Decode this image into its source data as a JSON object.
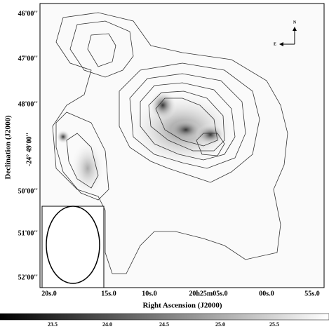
{
  "y_axis": {
    "title": "Declination (J2000)",
    "ticks": [
      "46'00''",
      "47'00''",
      "48'00''",
      "-24° 49'00''",
      "50'00''",
      "51'00''",
      "52'00''"
    ]
  },
  "x_axis": {
    "title": "Right Ascension (J2000)",
    "ticks": [
      "20s.0",
      "15s.0",
      "10s.0",
      "20h25m05s.0",
      "00s.0",
      "55s.0"
    ]
  },
  "colorbar": {
    "ticks": [
      "23.5",
      "24.0",
      "24.5",
      "25.0",
      "25.5"
    ]
  },
  "compass": {
    "north": "N",
    "east": "E"
  }
}
